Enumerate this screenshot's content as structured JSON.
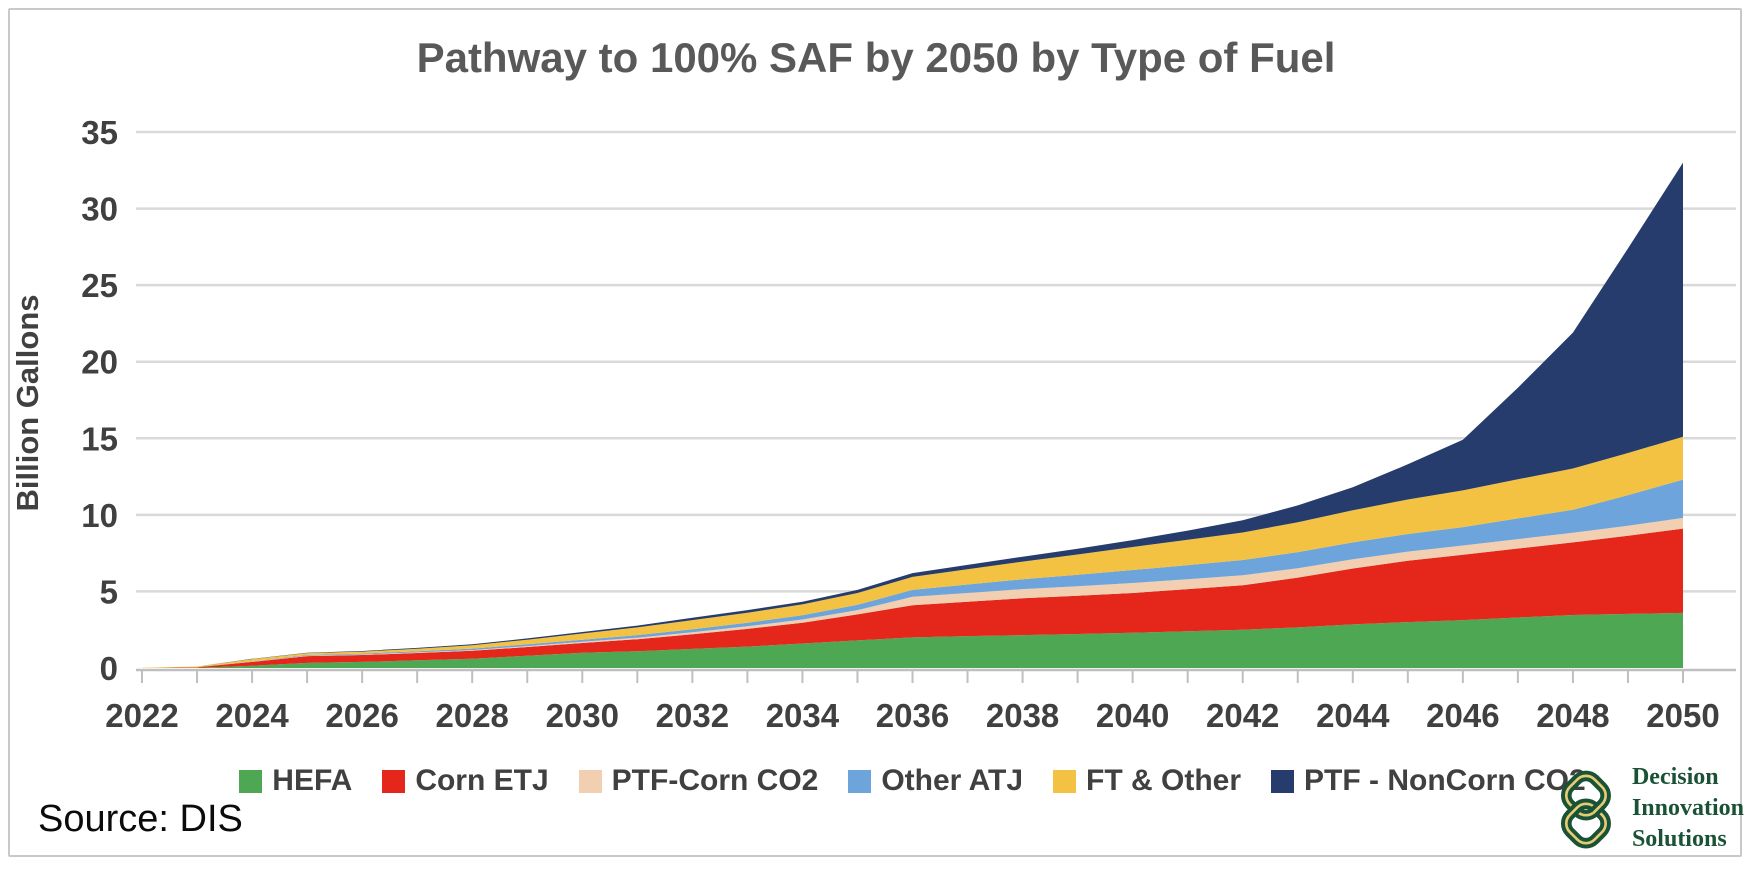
{
  "chart_data": {
    "type": "area",
    "stacked": true,
    "title": "Pathway to 100% SAF by 2050 by Type of Fuel",
    "xlabel": "",
    "ylabel": "Billion Gallons",
    "ylim": [
      0,
      35
    ],
    "yticks": [
      0,
      5,
      10,
      15,
      20,
      25,
      30,
      35
    ],
    "grid": true,
    "legend_position": "bottom",
    "x": [
      2022,
      2023,
      2024,
      2025,
      2026,
      2027,
      2028,
      2029,
      2030,
      2031,
      2032,
      2033,
      2034,
      2035,
      2036,
      2037,
      2038,
      2039,
      2040,
      2041,
      2042,
      2043,
      2044,
      2045,
      2046,
      2047,
      2048,
      2049,
      2050
    ],
    "xtick_labels": [
      2022,
      2024,
      2026,
      2028,
      2030,
      2032,
      2034,
      2036,
      2038,
      2040,
      2042,
      2044,
      2046,
      2048,
      2050
    ],
    "series": [
      {
        "name": "HEFA",
        "color": "#4ea853",
        "values": [
          0,
          0.02,
          0.15,
          0.33,
          0.4,
          0.5,
          0.6,
          0.8,
          1,
          1.1,
          1.25,
          1.4,
          1.6,
          1.8,
          2,
          2.08,
          2.15,
          2.22,
          2.3,
          2.4,
          2.5,
          2.65,
          2.85,
          3,
          3.13,
          3.3,
          3.46,
          3.53,
          3.6
        ]
      },
      {
        "name": "Corn ETJ",
        "color": "#e5261b",
        "values": [
          0,
          0.03,
          0.25,
          0.45,
          0.45,
          0.48,
          0.52,
          0.57,
          0.63,
          0.78,
          0.95,
          1.15,
          1.35,
          1.7,
          2.1,
          2.25,
          2.4,
          2.5,
          2.6,
          2.75,
          2.9,
          3.25,
          3.65,
          4,
          4.27,
          4.5,
          4.74,
          5.1,
          5.5
        ]
      },
      {
        "name": "PTF-Corn CO2",
        "color": "#f2cfb1",
        "values": [
          0,
          0,
          0.01,
          0.02,
          0.03,
          0.04,
          0.05,
          0.06,
          0.08,
          0.1,
          0.13,
          0.17,
          0.22,
          0.28,
          0.55,
          0.57,
          0.6,
          0.62,
          0.65,
          0.65,
          0.65,
          0.62,
          0.6,
          0.6,
          0.6,
          0.62,
          0.63,
          0.66,
          0.7
        ]
      },
      {
        "name": "Other ATJ",
        "color": "#6ea4dc",
        "values": [
          0,
          0,
          0.02,
          0.05,
          0.06,
          0.08,
          0.1,
          0.12,
          0.14,
          0.17,
          0.2,
          0.24,
          0.28,
          0.35,
          0.45,
          0.55,
          0.65,
          0.75,
          0.85,
          0.92,
          1,
          1.05,
          1.1,
          1.15,
          1.2,
          1.35,
          1.5,
          2,
          2.5
        ]
      },
      {
        "name": "FT & Other",
        "color": "#f4c242",
        "values": [
          0.02,
          0.05,
          0.15,
          0.12,
          0.13,
          0.16,
          0.22,
          0.3,
          0.4,
          0.5,
          0.6,
          0.65,
          0.7,
          0.77,
          0.85,
          1,
          1.15,
          1.32,
          1.5,
          1.65,
          1.8,
          1.95,
          2.1,
          2.25,
          2.4,
          2.55,
          2.7,
          2.75,
          2.8
        ]
      },
      {
        "name": "PTF - NonCorn CO2",
        "color": "#253c6d",
        "values": [
          0,
          0,
          0.02,
          0.03,
          0.04,
          0.05,
          0.06,
          0.08,
          0.1,
          0.12,
          0.15,
          0.17,
          0.18,
          0.2,
          0.25,
          0.28,
          0.32,
          0.38,
          0.45,
          0.6,
          0.8,
          1.1,
          1.5,
          2.3,
          3.3,
          5.98,
          8.87,
          13.36,
          17.9
        ]
      }
    ]
  },
  "source": {
    "label": "Source: DIS"
  },
  "logo": {
    "lines": [
      "Decision",
      "Innovation",
      "Solutions"
    ],
    "text_color": "#1a5235",
    "knot_green": "#1a5235",
    "knot_gold": "#e6cb76"
  },
  "style": {
    "title_color": "#595959",
    "axis_text_color": "#404040",
    "gridline_color": "#d9d9d9",
    "axis_line_color": "#bfbfbf"
  }
}
